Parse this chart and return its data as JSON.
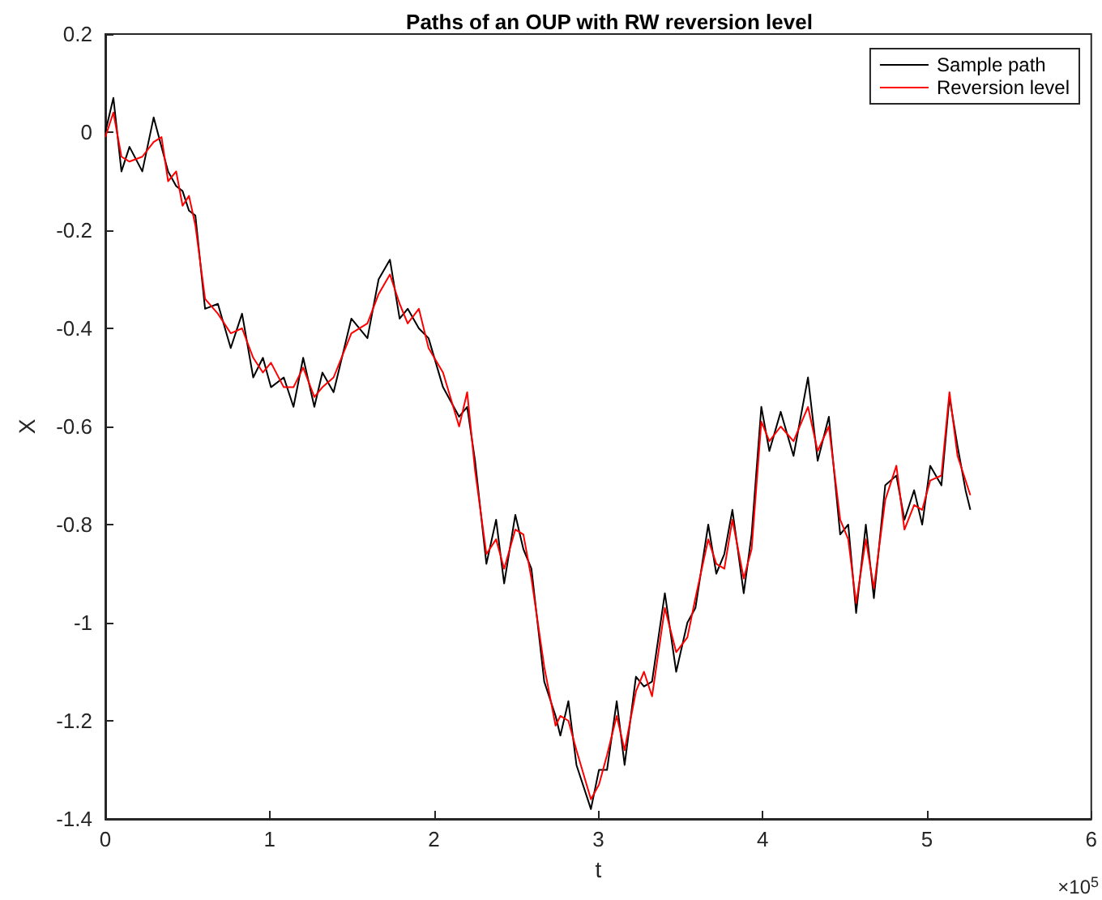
{
  "chart_data": {
    "type": "line",
    "title": "Paths of an OUP with RW reversion level",
    "xlabel": "t",
    "ylabel": "X",
    "x": [
      0,
      0.049,
      0.098,
      0.147,
      0.225,
      0.294,
      0.342,
      0.382,
      0.431,
      0.47,
      0.509,
      0.548,
      0.607,
      0.685,
      0.763,
      0.832,
      0.9,
      0.959,
      1.008,
      1.086,
      1.145,
      1.204,
      1.272,
      1.321,
      1.389,
      1.497,
      1.595,
      1.663,
      1.732,
      1.791,
      1.84,
      1.908,
      1.967,
      2.055,
      2.153,
      2.202,
      2.25,
      2.319,
      2.378,
      2.427,
      2.495,
      2.544,
      2.593,
      2.671,
      2.74,
      2.769,
      2.818,
      2.867,
      2.955,
      3.004,
      3.053,
      3.112,
      3.16,
      3.229,
      3.278,
      3.327,
      3.405,
      3.474,
      3.542,
      3.591,
      3.669,
      3.718,
      3.767,
      3.816,
      3.885,
      3.933,
      3.992,
      4.041,
      4.11,
      4.188,
      4.276,
      4.335,
      4.403,
      4.472,
      4.521,
      4.569,
      4.628,
      4.677,
      4.746,
      4.814,
      4.863,
      4.922,
      4.971,
      5.02,
      5.088,
      5.137,
      5.186,
      5.235,
      5.264
    ],
    "series": [
      {
        "name": "Sample path",
        "color": "#000000",
        "values": [
          0.0,
          0.07,
          -0.08,
          -0.03,
          -0.08,
          0.03,
          -0.03,
          -0.08,
          -0.11,
          -0.12,
          -0.16,
          -0.17,
          -0.36,
          -0.35,
          -0.44,
          -0.37,
          -0.5,
          -0.46,
          -0.52,
          -0.5,
          -0.56,
          -0.46,
          -0.56,
          -0.49,
          -0.53,
          -0.38,
          -0.42,
          -0.3,
          -0.26,
          -0.38,
          -0.36,
          -0.4,
          -0.42,
          -0.52,
          -0.58,
          -0.56,
          -0.67,
          -0.88,
          -0.79,
          -0.92,
          -0.78,
          -0.85,
          -0.89,
          -1.12,
          -1.19,
          -1.23,
          -1.16,
          -1.29,
          -1.38,
          -1.3,
          -1.3,
          -1.16,
          -1.29,
          -1.11,
          -1.13,
          -1.12,
          -0.94,
          -1.1,
          -1.0,
          -0.97,
          -0.8,
          -0.9,
          -0.86,
          -0.77,
          -0.94,
          -0.82,
          -0.56,
          -0.65,
          -0.57,
          -0.66,
          -0.5,
          -0.67,
          -0.58,
          -0.82,
          -0.8,
          -0.98,
          -0.8,
          -0.95,
          -0.72,
          -0.7,
          -0.79,
          -0.73,
          -0.8,
          -0.68,
          -0.72,
          -0.54,
          -0.64,
          -0.73,
          -0.77
        ]
      },
      {
        "name": "Reversion level",
        "color": "#ff0000",
        "values": [
          -0.01,
          0.04,
          -0.05,
          -0.06,
          -0.05,
          -0.02,
          -0.01,
          -0.1,
          -0.08,
          -0.15,
          -0.13,
          -0.19,
          -0.34,
          -0.37,
          -0.41,
          -0.4,
          -0.46,
          -0.49,
          -0.47,
          -0.52,
          -0.52,
          -0.48,
          -0.54,
          -0.52,
          -0.5,
          -0.41,
          -0.39,
          -0.33,
          -0.29,
          -0.35,
          -0.39,
          -0.36,
          -0.44,
          -0.49,
          -0.6,
          -0.53,
          -0.69,
          -0.86,
          -0.83,
          -0.89,
          -0.81,
          -0.82,
          -0.91,
          -1.09,
          -1.21,
          -1.19,
          -1.2,
          -1.26,
          -1.36,
          -1.33,
          -1.27,
          -1.19,
          -1.26,
          -1.14,
          -1.1,
          -1.15,
          -0.97,
          -1.06,
          -1.03,
          -0.95,
          -0.83,
          -0.88,
          -0.89,
          -0.79,
          -0.91,
          -0.85,
          -0.59,
          -0.63,
          -0.6,
          -0.63,
          -0.56,
          -0.65,
          -0.6,
          -0.79,
          -0.83,
          -0.96,
          -0.83,
          -0.93,
          -0.75,
          -0.68,
          -0.81,
          -0.76,
          -0.77,
          -0.71,
          -0.7,
          -0.53,
          -0.66,
          -0.71,
          -0.74
        ]
      }
    ],
    "xlim": [
      0,
      6
    ],
    "xticks": [
      0,
      1,
      2,
      3,
      4,
      5,
      6
    ],
    "ylim": [
      -1.4,
      0.2
    ],
    "yticks": [
      -1.4,
      -1.2,
      -1,
      -0.8,
      -0.6,
      -0.4,
      -0.2,
      0,
      0.2
    ],
    "annotations": [
      "×10$^{5}$"
    ],
    "grid": false,
    "legend": "top right",
    "marker": "none",
    "line_style": "solid"
  }
}
